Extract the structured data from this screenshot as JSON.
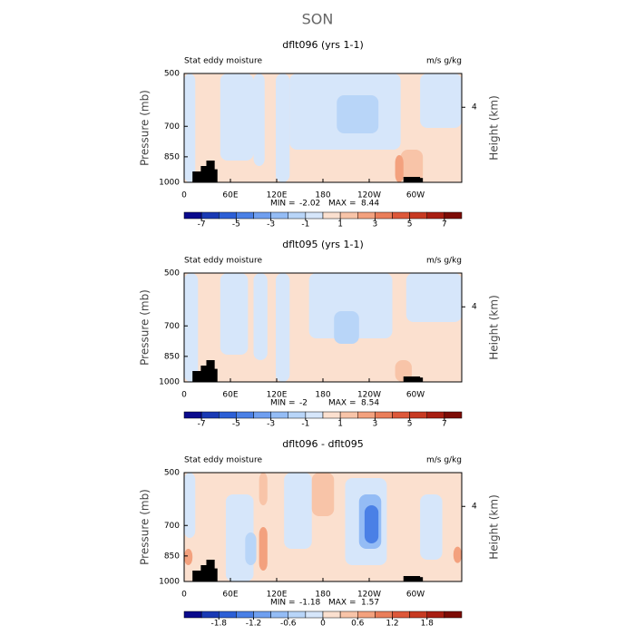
{
  "title": "SON",
  "chart_data": [
    {
      "type": "contour",
      "title": "dflt096 (yrs 1-1)",
      "left_label": "Stat eddy moisture",
      "right_label": "m/s g/kg",
      "ylabel": "Pressure (mb)",
      "y2label": "Height (km)",
      "xlim": [
        0,
        360
      ],
      "xticks": [
        0,
        {
          "value": 60,
          "label": "60E"
        },
        {
          "value": 120,
          "label": "120E"
        },
        180,
        {
          "value": 240,
          "label": "120W"
        },
        {
          "value": 300,
          "label": "60W"
        }
      ],
      "ylim": [
        1000,
        500
      ],
      "yscale": "log",
      "yticks": [
        500,
        700,
        850,
        1000
      ],
      "y2lim": [
        0,
        5.8
      ],
      "y2ticks": [
        4
      ],
      "min_label": "MIN =",
      "min": -2.02,
      "max_label": "MAX =",
      "max": 8.44,
      "colorbar": {
        "levels": [
          -8,
          -7,
          -6,
          -5,
          -4,
          -3,
          -2,
          -1,
          0,
          1,
          2,
          3,
          4,
          5,
          6,
          7,
          8
        ],
        "ticks": [
          -7,
          -5,
          -3,
          -1,
          1,
          3,
          5,
          7
        ],
        "colors": [
          "#0a0a8c",
          "#1a3ab4",
          "#2c5fd6",
          "#4a80e6",
          "#6f9ff0",
          "#94bcf5",
          "#b8d5f8",
          "#d6e6fa",
          "#fbe0cf",
          "#f8c4a8",
          "#f3a17e",
          "#ea7e5a",
          "#dd583a",
          "#c73a22",
          "#a81e12",
          "#7d0c06"
        ]
      }
    },
    {
      "type": "contour",
      "title": "dflt095 (yrs 1-1)",
      "left_label": "Stat eddy moisture",
      "right_label": "m/s g/kg",
      "ylabel": "Pressure (mb)",
      "y2label": "Height (km)",
      "xlim": [
        0,
        360
      ],
      "xticks": [
        0,
        {
          "value": 60,
          "label": "60E"
        },
        {
          "value": 120,
          "label": "120E"
        },
        180,
        {
          "value": 240,
          "label": "120W"
        },
        {
          "value": 300,
          "label": "60W"
        }
      ],
      "ylim": [
        1000,
        500
      ],
      "yscale": "log",
      "yticks": [
        500,
        700,
        850,
        1000
      ],
      "y2lim": [
        0,
        5.8
      ],
      "y2ticks": [
        4
      ],
      "min_label": "MIN =",
      "min": -2.0,
      "max_label": "MAX =",
      "max": 8.54,
      "colorbar": {
        "levels": [
          -8,
          -7,
          -6,
          -5,
          -4,
          -3,
          -2,
          -1,
          0,
          1,
          2,
          3,
          4,
          5,
          6,
          7,
          8
        ],
        "ticks": [
          -7,
          -5,
          -3,
          -1,
          1,
          3,
          5,
          7
        ],
        "colors": [
          "#0a0a8c",
          "#1a3ab4",
          "#2c5fd6",
          "#4a80e6",
          "#6f9ff0",
          "#94bcf5",
          "#b8d5f8",
          "#d6e6fa",
          "#fbe0cf",
          "#f8c4a8",
          "#f3a17e",
          "#ea7e5a",
          "#dd583a",
          "#c73a22",
          "#a81e12",
          "#7d0c06"
        ]
      }
    },
    {
      "type": "contour",
      "title": "dflt096 - dflt095",
      "left_label": "Stat eddy moisture",
      "right_label": "m/s g/kg",
      "ylabel": "Pressure (mb)",
      "y2label": "Height (km)",
      "xlim": [
        0,
        360
      ],
      "xticks": [
        0,
        {
          "value": 60,
          "label": "60E"
        },
        {
          "value": 120,
          "label": "120E"
        },
        180,
        {
          "value": 240,
          "label": "120W"
        },
        {
          "value": 300,
          "label": "60W"
        }
      ],
      "ylim": [
        1000,
        500
      ],
      "yscale": "log",
      "yticks": [
        500,
        700,
        850,
        1000
      ],
      "y2lim": [
        0,
        5.8
      ],
      "y2ticks": [
        4
      ],
      "min_label": "MIN =",
      "min": -1.18,
      "max_label": "MAX =",
      "max": 1.57,
      "colorbar": {
        "levels": [
          -2.4,
          -2.1,
          -1.8,
          -1.5,
          -1.2,
          -0.9,
          -0.6,
          -0.3,
          0,
          0.3,
          0.6,
          0.9,
          1.2,
          1.5,
          1.8,
          2.1,
          2.4
        ],
        "ticks": [
          -1.8,
          -1.2,
          -0.6,
          0,
          0.6,
          1.2,
          1.8
        ],
        "colors": [
          "#0a0a8c",
          "#1a3ab4",
          "#2c5fd6",
          "#4a80e6",
          "#6f9ff0",
          "#94bcf5",
          "#b8d5f8",
          "#d6e6fa",
          "#fbe0cf",
          "#f8c4a8",
          "#f3a17e",
          "#ea7e5a",
          "#dd583a",
          "#c73a22",
          "#a81e12",
          "#7d0c06"
        ]
      }
    }
  ]
}
